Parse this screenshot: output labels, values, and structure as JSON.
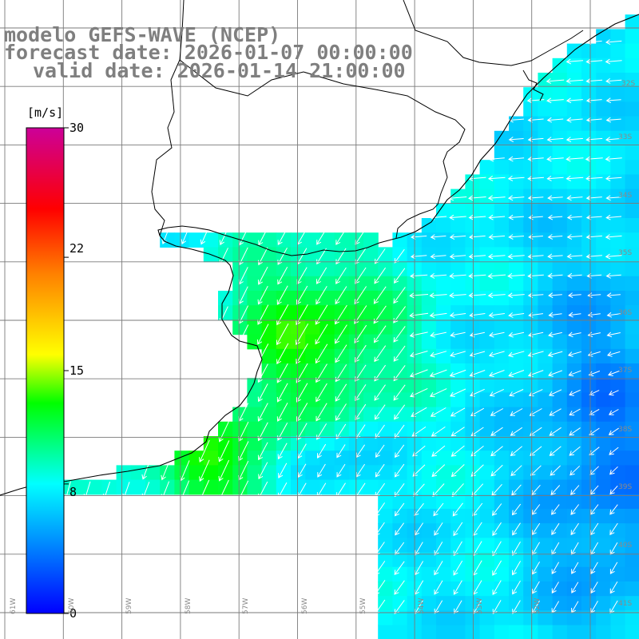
{
  "title": {
    "model": "modelo GEFS-WAVE (NCEP)",
    "forecast": "forecast date: 2026-01-07 00:00:00",
    "valid": "valid date: 2026-01-14 21:00:00"
  },
  "colorbar": {
    "unit": "[m/s]",
    "ticks": [
      "30",
      "22",
      "15",
      "8",
      "0"
    ],
    "tick_values": [
      30,
      22,
      15,
      8,
      0
    ],
    "colors": [
      "#0000ff",
      "#00a0ff",
      "#00ffff",
      "#00ff00",
      "#ffff00",
      "#ff8000",
      "#ff0000",
      "#cc0099"
    ]
  },
  "lat_labels": [
    "32S",
    "33S",
    "34S",
    "35S",
    "36S",
    "37S",
    "38S",
    "39S",
    "40S",
    "41S"
  ],
  "lon_labels": [
    "61W",
    "60W",
    "59W",
    "58W",
    "57W",
    "56W",
    "55W",
    "54W",
    "53W",
    "52W"
  ],
  "colors": {
    "land": "#ffffff",
    "coastline": "#000000",
    "grid": "#7a7a7a",
    "arrow": "#ffffff",
    "title_text": "#7f7f7f"
  }
}
